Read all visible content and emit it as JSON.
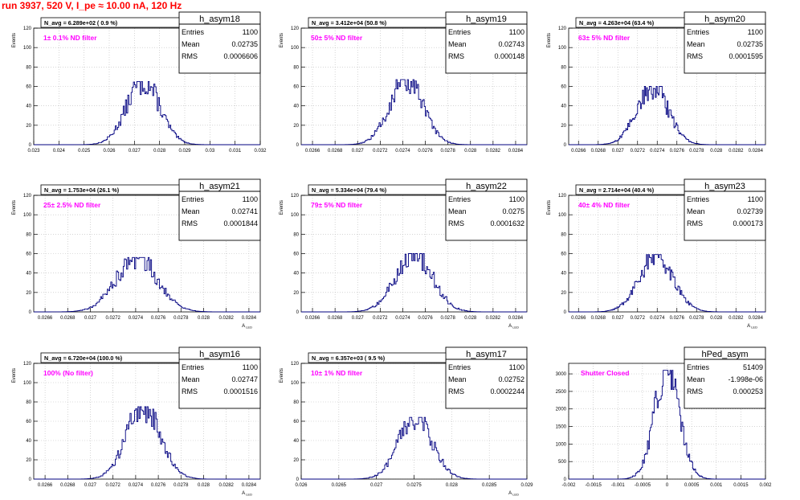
{
  "page_title": "run 3937,   520 V, I_pe ≈ 10.00 nA, 120 Hz",
  "colors": {
    "histogram_line": "#000080",
    "title_text": "#ff0000",
    "filter_text": "#ff00ff",
    "grid": "#bcbcbc",
    "axis": "#000000"
  },
  "chart_data": [
    {
      "type": "histogram",
      "name": "h_asym18",
      "nav_text": "N_avg = 6.289e+02 ( 0.9 %)",
      "filter_text": "1± 0.1% ND filter",
      "stats": {
        "entries_label": "Entries",
        "entries": "1100",
        "mean_label": "Mean",
        "mean": "0.02735",
        "rms_label": "RMS",
        "rms": "0.0006606"
      },
      "ylabel": "Events",
      "xlabel": "",
      "xlim": [
        0.023,
        0.032
      ],
      "ylim": [
        0,
        120
      ],
      "xticks": [
        "0.023",
        "0.024",
        "0.025",
        "0.026",
        "0.027",
        "0.028",
        "0.029",
        "0.03",
        "0.031",
        "0.032"
      ],
      "yticks": [
        "0",
        "20",
        "40",
        "60",
        "80",
        "100",
        "120"
      ],
      "peak": 65
    },
    {
      "type": "histogram",
      "name": "h_asym19",
      "nav_text": "N_avg = 3.412e+04 (50.8 %)",
      "filter_text": "50± 5% ND filter",
      "stats": {
        "entries_label": "Entries",
        "entries": "1100",
        "mean_label": "Mean",
        "mean": "0.02743",
        "rms_label": "RMS",
        "rms": "0.000148"
      },
      "ylabel": "Events",
      "xlabel": "",
      "xlim": [
        0.0265,
        0.0285
      ],
      "ylim": [
        0,
        120
      ],
      "xticks": [
        "0.0266",
        "0.0268",
        "0.027",
        "0.0272",
        "0.0274",
        "0.0276",
        "0.0278",
        "0.028",
        "0.0282",
        "0.0284"
      ],
      "yticks": [
        "0",
        "20",
        "40",
        "60",
        "80",
        "100",
        "120"
      ],
      "peak": 67
    },
    {
      "type": "histogram",
      "name": "h_asym20",
      "nav_text": "N_avg = 4.263e+04 (63.4 %)",
      "filter_text": "63± 5% ND filter",
      "stats": {
        "entries_label": "Entries",
        "entries": "1100",
        "mean_label": "Mean",
        "mean": "0.02735",
        "rms_label": "RMS",
        "rms": "0.0001595"
      },
      "ylabel": "Events",
      "xlabel": "",
      "xlim": [
        0.0265,
        0.0285
      ],
      "ylim": [
        0,
        120
      ],
      "xticks": [
        "0.0266",
        "0.0268",
        "0.027",
        "0.0272",
        "0.0274",
        "0.0276",
        "0.0278",
        "0.028",
        "0.0282",
        "0.0284"
      ],
      "yticks": [
        "0",
        "20",
        "40",
        "60",
        "80",
        "100",
        "120"
      ],
      "peak": 60
    },
    {
      "type": "histogram",
      "name": "h_asym21",
      "nav_text": "N_avg = 1.753e+04 (26.1 %)",
      "filter_text": "25± 2.5% ND filter",
      "stats": {
        "entries_label": "Entries",
        "entries": "1100",
        "mean_label": "Mean",
        "mean": "0.02741",
        "rms_label": "RMS",
        "rms": "0.0001844"
      },
      "ylabel": "Events",
      "xlabel": "A_LED",
      "xlim": [
        0.0265,
        0.0285
      ],
      "ylim": [
        0,
        120
      ],
      "xticks": [
        "0.0266",
        "0.0268",
        "0.027",
        "0.0272",
        "0.0274",
        "0.0276",
        "0.0278",
        "0.028",
        "0.0282",
        "0.0284"
      ],
      "yticks": [
        "0",
        "20",
        "40",
        "60",
        "80",
        "100",
        "120"
      ],
      "peak": 56
    },
    {
      "type": "histogram",
      "name": "h_asym22",
      "nav_text": "N_avg = 5.334e+04 (79.4 %)",
      "filter_text": "79± 5% ND filter",
      "stats": {
        "entries_label": "Entries",
        "entries": "1100",
        "mean_label": "Mean",
        "mean": "0.0275",
        "rms_label": "RMS",
        "rms": "0.0001632"
      },
      "ylabel": "Events",
      "xlabel": "A_LED",
      "xlim": [
        0.0265,
        0.0285
      ],
      "ylim": [
        0,
        120
      ],
      "xticks": [
        "0.0266",
        "0.0268",
        "0.027",
        "0.0272",
        "0.0274",
        "0.0276",
        "0.0278",
        "0.028",
        "0.0282",
        "0.0284"
      ],
      "yticks": [
        "0",
        "20",
        "40",
        "60",
        "80",
        "100",
        "120"
      ],
      "peak": 60
    },
    {
      "type": "histogram",
      "name": "h_asym23",
      "nav_text": "N_avg = 2.714e+04 (40.4 %)",
      "filter_text": "40± 4% ND filter",
      "stats": {
        "entries_label": "Entries",
        "entries": "1100",
        "mean_label": "Mean",
        "mean": "0.02739",
        "rms_label": "RMS",
        "rms": "0.000173"
      },
      "ylabel": "Events",
      "xlabel": "A_LED",
      "xlim": [
        0.0265,
        0.0285
      ],
      "ylim": [
        0,
        120
      ],
      "xticks": [
        "0.0266",
        "0.0268",
        "0.027",
        "0.0272",
        "0.0274",
        "0.0276",
        "0.0278",
        "0.028",
        "0.0282",
        "0.0284"
      ],
      "yticks": [
        "0",
        "20",
        "40",
        "60",
        "80",
        "100",
        "120"
      ],
      "peak": 59
    },
    {
      "type": "histogram",
      "name": "h_asym16",
      "nav_text": "N_avg = 6.720e+04 (100.0 %)",
      "filter_text": "100% (No filter)",
      "stats": {
        "entries_label": "Entries",
        "entries": "1100",
        "mean_label": "Mean",
        "mean": "0.02747",
        "rms_label": "RMS",
        "rms": "0.0001516"
      },
      "ylabel": "Events",
      "xlabel": "A_LED",
      "xlim": [
        0.0265,
        0.0285
      ],
      "ylim": [
        0,
        120
      ],
      "xticks": [
        "0.0266",
        "0.0268",
        "0.027",
        "0.0272",
        "0.0274",
        "0.0276",
        "0.0278",
        "0.028",
        "0.0282",
        "0.0284"
      ],
      "yticks": [
        "0",
        "20",
        "40",
        "60",
        "80",
        "100",
        "120"
      ],
      "peak": 75
    },
    {
      "type": "histogram",
      "name": "h_asym17",
      "nav_text": "N_avg = 6.357e+03 ( 9.5 %)",
      "filter_text": "10± 1% ND filter",
      "stats": {
        "entries_label": "Entries",
        "entries": "1100",
        "mean_label": "Mean",
        "mean": "0.02752",
        "rms_label": "RMS",
        "rms": "0.0002244"
      },
      "ylabel": "Events",
      "xlabel": "A_LED",
      "xlim": [
        0.026,
        0.029
      ],
      "ylim": [
        0,
        120
      ],
      "xticks": [
        "0.026",
        "0.0265",
        "0.027",
        "0.0275",
        "0.028",
        "0.0285",
        "0.029"
      ],
      "yticks": [
        "0",
        "20",
        "40",
        "60",
        "80",
        "100",
        "120"
      ],
      "peak": 64
    },
    {
      "type": "histogram",
      "name": "hPed_asym",
      "nav_text": "",
      "filter_text": "Shutter Closed",
      "stats": {
        "entries_label": "Entries",
        "entries": "51409",
        "mean_label": "Mean",
        "mean": "-1.998e-06",
        "rms_label": "RMS",
        "rms": "0.000253"
      },
      "ylabel": "",
      "xlabel": "",
      "xlim": [
        -0.002,
        0.002
      ],
      "ylim": [
        0,
        3300
      ],
      "xticks": [
        "-0.002",
        "-0.0015",
        "-0.001",
        "-0.0005",
        "0",
        "0.0005",
        "0.001",
        "0.0015",
        "0.002"
      ],
      "yticks": [
        "0",
        "500",
        "1000",
        "1500",
        "2000",
        "2500",
        "3000"
      ],
      "peak": 3100
    }
  ]
}
